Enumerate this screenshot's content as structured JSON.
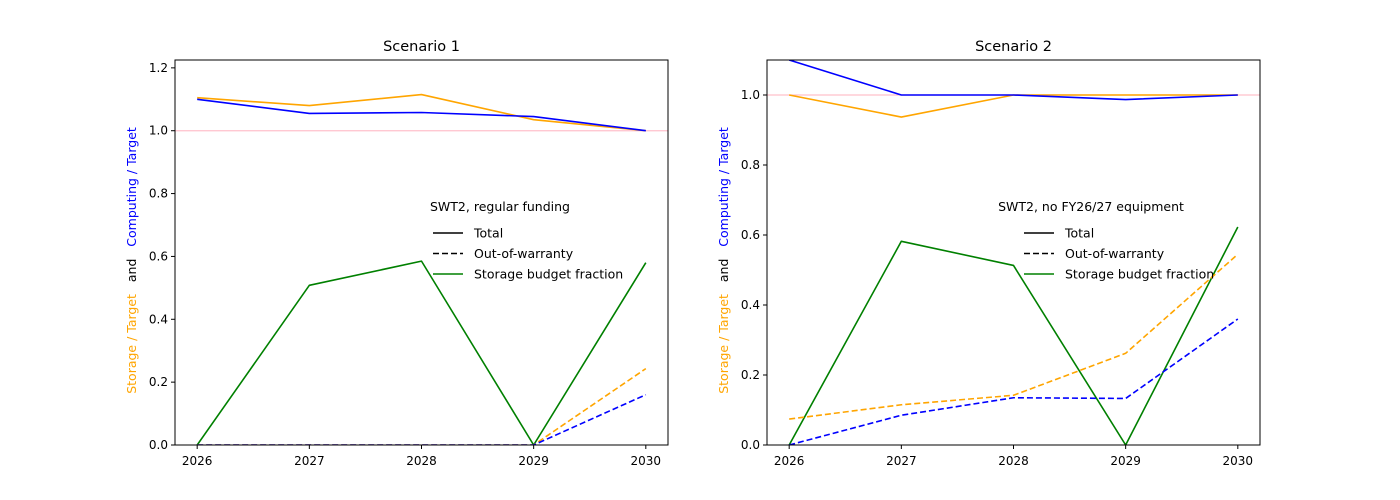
{
  "chart_data": [
    {
      "type": "line",
      "title": "Scenario 1",
      "ylabel_parts": [
        {
          "text": "Storage / Target",
          "color": "#FFA500"
        },
        {
          "text": "and",
          "color": "#000000"
        },
        {
          "text": "Computing / Target",
          "color": "#0000FF"
        }
      ],
      "x": [
        "2026",
        "2027",
        "2028",
        "2029",
        "2030"
      ],
      "ylim": [
        0,
        1.225
      ],
      "yticks": [
        "0.0",
        "0.2",
        "0.4",
        "0.6",
        "0.8",
        "1.0",
        "1.2"
      ],
      "reference_line": {
        "y": 1.0,
        "color": "#FFC0CB"
      },
      "legend": {
        "title": "SWT2, regular funding",
        "placement": "center-right",
        "entries": [
          {
            "label": "Total",
            "color": "#000000",
            "dash": "solid"
          },
          {
            "label": "Out-of-warranty",
            "color": "#000000",
            "dash": "dashed"
          },
          {
            "label": "Storage budget fraction",
            "color": "#008000",
            "dash": "solid"
          }
        ]
      },
      "series": [
        {
          "color": "#FFA500",
          "dash": "solid",
          "values": [
            1.105,
            1.08,
            1.115,
            1.035,
            1.0
          ]
        },
        {
          "color": "#0000FF",
          "dash": "solid",
          "values": [
            1.1,
            1.055,
            1.058,
            1.045,
            1.0
          ]
        },
        {
          "color": "#008000",
          "dash": "solid",
          "values": [
            0.0,
            0.508,
            0.585,
            0.0,
            0.58
          ]
        },
        {
          "color": "#FFA500",
          "dash": "dashed",
          "values": [
            0.0,
            0.0,
            0.0,
            0.0,
            0.243
          ]
        },
        {
          "color": "#0000FF",
          "dash": "dashed",
          "values": [
            0.0,
            0.0,
            0.0,
            0.0,
            0.16
          ]
        }
      ]
    },
    {
      "type": "line",
      "title": "Scenario 2",
      "ylabel_parts": [
        {
          "text": "Storage / Target",
          "color": "#FFA500"
        },
        {
          "text": "and",
          "color": "#000000"
        },
        {
          "text": "Computing / Target",
          "color": "#0000FF"
        }
      ],
      "x": [
        "2026",
        "2027",
        "2028",
        "2029",
        "2030"
      ],
      "ylim": [
        0,
        1.1
      ],
      "yticks": [
        "0.0",
        "0.2",
        "0.4",
        "0.6",
        "0.8",
        "1.0"
      ],
      "reference_line": {
        "y": 1.0,
        "color": "#FFC0CB"
      },
      "legend": {
        "title": "SWT2, no FY26/27 equipment",
        "placement": "center-right",
        "entries": [
          {
            "label": "Total",
            "color": "#000000",
            "dash": "solid"
          },
          {
            "label": "Out-of-warranty",
            "color": "#000000",
            "dash": "dashed"
          },
          {
            "label": "Storage budget fraction",
            "color": "#008000",
            "dash": "solid"
          }
        ]
      },
      "series": [
        {
          "color": "#FFA500",
          "dash": "solid",
          "values": [
            1.0,
            0.937,
            1.0,
            1.0,
            1.0
          ]
        },
        {
          "color": "#0000FF",
          "dash": "solid",
          "values": [
            1.1,
            1.0,
            1.0,
            0.987,
            1.0
          ]
        },
        {
          "color": "#008000",
          "dash": "solid",
          "values": [
            0.0,
            0.582,
            0.513,
            0.0,
            0.623
          ]
        },
        {
          "color": "#FFA500",
          "dash": "dashed",
          "values": [
            0.074,
            0.115,
            0.142,
            0.262,
            0.545
          ]
        },
        {
          "color": "#0000FF",
          "dash": "dashed",
          "values": [
            0.0,
            0.085,
            0.135,
            0.133,
            0.36
          ]
        }
      ]
    }
  ]
}
